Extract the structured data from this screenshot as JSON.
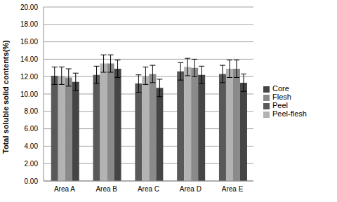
{
  "chart_data": {
    "type": "bar",
    "y_label": "Total soluble solid contents(%)",
    "categories": [
      "Area A",
      "Area B",
      "Area C",
      "Area D",
      "Area E"
    ],
    "series": [
      {
        "name": "Peel",
        "color": "#595959",
        "values": [
          12.1,
          12.2,
          11.2,
          12.6,
          12.3
        ],
        "errors": [
          1.0,
          1.0,
          1.0,
          1.0,
          1.0
        ]
      },
      {
        "name": "Peel-flesh",
        "color": "#b3b3b3",
        "values": [
          12.1,
          13.5,
          12.1,
          13.1,
          12.9
        ],
        "errors": [
          1.0,
          1.0,
          1.0,
          1.0,
          1.0
        ]
      },
      {
        "name": "Flesh",
        "color": "#8a8a8a",
        "values": [
          11.9,
          13.5,
          12.3,
          13.0,
          12.9
        ],
        "errors": [
          1.0,
          1.0,
          1.0,
          1.0,
          1.0
        ]
      },
      {
        "name": "Core",
        "color": "#454545",
        "values": [
          11.4,
          12.9,
          10.7,
          12.2,
          11.3
        ],
        "errors": [
          1.0,
          1.0,
          1.0,
          1.0,
          1.0
        ]
      }
    ],
    "ylim": [
      0,
      20
    ],
    "yticks": [
      {
        "value": 0,
        "label": "0.00"
      },
      {
        "value": 2,
        "label": "2.00"
      },
      {
        "value": 4,
        "label": "4.00"
      },
      {
        "value": 6,
        "label": "6.00"
      },
      {
        "value": 8,
        "label": "8.00"
      },
      {
        "value": 10,
        "label": "10.00"
      },
      {
        "value": 12,
        "label": "12.00"
      },
      {
        "value": 14,
        "label": "14.00"
      },
      {
        "value": 16,
        "label": "16.00"
      },
      {
        "value": 18,
        "label": "18.00"
      },
      {
        "value": 20,
        "label": "20.00"
      }
    ],
    "grid": true,
    "legend": "right"
  }
}
